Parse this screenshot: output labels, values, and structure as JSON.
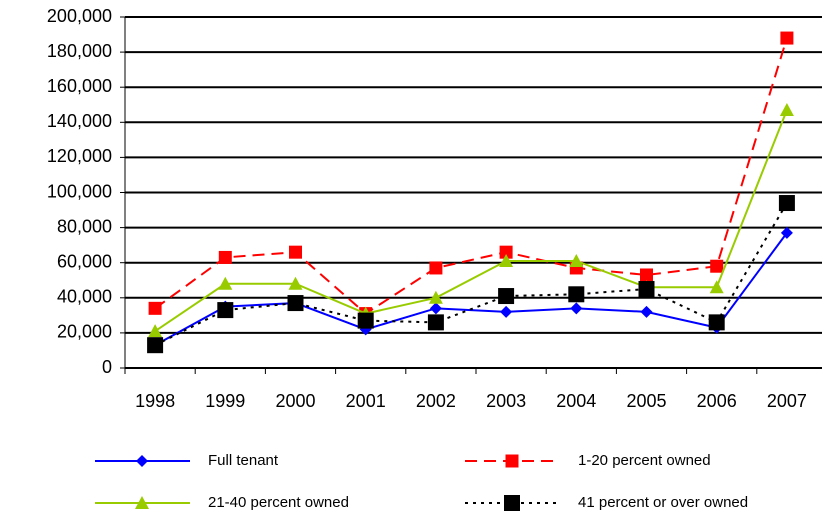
{
  "chart_data": {
    "type": "line",
    "categories": [
      "1998",
      "1999",
      "2000",
      "2001",
      "2002",
      "2003",
      "2004",
      "2005",
      "2006",
      "2007"
    ],
    "series": [
      {
        "name": "Full tenant",
        "color": "#0000ff",
        "marker": "diamond",
        "dash": "solid",
        "values": [
          13000,
          35000,
          37000,
          22000,
          34000,
          32000,
          34000,
          32000,
          23000,
          77000
        ]
      },
      {
        "name": "1-20 percent owned",
        "color": "#ff0000",
        "marker": "square",
        "dash": "dashed",
        "values": [
          34000,
          63000,
          66000,
          31000,
          57000,
          66000,
          57000,
          53000,
          58000,
          188000
        ]
      },
      {
        "name": "21-40 percent owned",
        "color": "#99cc00",
        "marker": "triangle",
        "dash": "solid",
        "values": [
          21000,
          48000,
          48000,
          31000,
          40000,
          61000,
          61000,
          46000,
          46000,
          147000
        ]
      },
      {
        "name": "41 percent or over owned",
        "color": "#000000",
        "marker": "square",
        "dash": "dotted",
        "values": [
          13000,
          33000,
          37000,
          27000,
          26000,
          41000,
          42000,
          45000,
          26000,
          94000
        ]
      }
    ],
    "ylim": [
      0,
      200000
    ],
    "yticks": [
      0,
      {
        "value": 20000,
        "label": "20,000"
      },
      {
        "value": 40000,
        "label": "40,000"
      },
      {
        "value": 60000,
        "label": "60,000"
      },
      {
        "value": 80000,
        "label": "80,000"
      },
      {
        "value": 100000,
        "label": "100,000"
      },
      {
        "value": 120000,
        "label": "120,000"
      },
      {
        "value": 140000,
        "label": "140,000"
      },
      {
        "value": 160000,
        "label": "160,000"
      },
      {
        "value": 180000,
        "label": "180,000"
      },
      {
        "value": 200000,
        "label": "200,000"
      }
    ],
    "grid": true,
    "legend": "bottom"
  }
}
